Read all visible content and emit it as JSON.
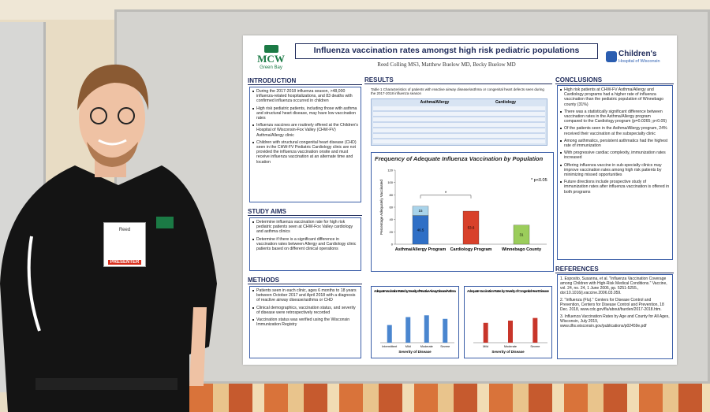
{
  "badge": {
    "name": "Reed",
    "label": "PRESENTER"
  },
  "poster": {
    "logo_left": {
      "name": "MCW",
      "sub": "Green Bay"
    },
    "title": "Influenza vaccination rates amongst high risk pediatric populations",
    "authors": "Reed Colling MS3, Matthew Buelow MD, Becky Buelow MD",
    "logo_right": {
      "name": "Children's",
      "sub": "Hospital of Wisconsin"
    },
    "introduction": {
      "heading": "INTRODUCTION",
      "items": [
        "During the 2017-2018 influenza season, >48,000 influenza-related hospitalizations, and 83 deaths with confirmed influenza occurred in children",
        "High risk pediatric patients, including those with asthma and structural heart disease, may have low vaccination rates",
        "Influenza vaccines are routinely offered at the Children's Hospital of Wisconsin-Fox Valley (CHW-FV) Asthma/Allergy clinic",
        "Children with structural congenital heart disease (CHD) seen in the CHW-FV Pediatric Cardiology clinic are not provided the influenza vaccination onsite and must receive influenza vaccination at an alternate time and location"
      ]
    },
    "study_aims": {
      "heading": "STUDY AIMS",
      "items": [
        "Determine influenza vaccination rate for high risk pediatric patients seen at CHW-Fox Valley cardiology and asthma clinics",
        "Determine if there is a significant difference in vaccination rates between Allergy and Cardiology clinic patients based on different clinical operations"
      ]
    },
    "methods": {
      "heading": "METHODS",
      "items": [
        "Patients seen in each clinic, ages 6 months to 18 years between October 2017 and April 2018 with a diagnosis of reactive airway disease/asthma or CHD",
        "Clinical demographics, vaccination status, and severity of disease were retrospectively recorded",
        "Vaccination status was verified using the Wisconsin Immunization Registry"
      ]
    },
    "results": {
      "heading": "RESULTS",
      "table": {
        "caption": "Table 1 Characteristics of patients with reactive airway disease/asthma or congenital heart defects seen during the 2017-2018 influenza season",
        "groups": [
          "Asthma/Allergy",
          "Cardiology"
        ]
      },
      "figure": {
        "title": "Frequency of Adequate Influenza Vaccination by Population",
        "y_label": "Percentage Adequately Vaccinated",
        "note": "* p<0.05",
        "significance": "*",
        "ylim": [
          0,
          120
        ],
        "yticks": [
          0,
          20,
          40,
          60,
          80,
          100,
          120
        ],
        "bars": [
          {
            "category": "Asthma/Allergy Program",
            "values": [
              46.5,
              15
            ],
            "colors": [
              "#2f6fc6",
              "#a8d3ea"
            ]
          },
          {
            "category": "Cardiology Program",
            "values": [
              53.6
            ],
            "colors": [
              "#d8412b"
            ]
          },
          {
            "category": "Winnebago County",
            "values": [
              31
            ],
            "colors": [
              "#9bcd5b"
            ]
          }
        ]
      },
      "small_charts": [
        {
          "title": "Adequate Vaccination Rates by Severity of Reactive Airway Disease/Asthma",
          "x_label": "Severity of Disease",
          "categories": [
            "Intermittent",
            "Mild",
            "Moderate",
            "Severe"
          ],
          "values": [
            40,
            58,
            62,
            54
          ],
          "color": "#4a86cf",
          "ylim": [
            0,
            100
          ]
        },
        {
          "title": "Adequate Vaccination Rates by Severity of Congenital Heart Disease",
          "x_label": "Severity of Disease",
          "categories": [
            "Mild",
            "Moderate",
            "Severe"
          ],
          "values": [
            45,
            50,
            56
          ],
          "color": "#c8352a",
          "ylim": [
            0,
            100
          ]
        }
      ]
    },
    "conclusions": {
      "heading": "CONCLUSIONS",
      "items": [
        "High risk patients at CHW-FV Asthma/Allergy and Cardiology programs had a higher rate of influenza vaccination than the pediatric population of Winnebago county (31%)",
        "There was a statistically significant difference between vaccination rates in the Asthma/Allergy program compared to the Cardiology program (p=0.0265; p<0.05)",
        "Of the patients seen in the Asthma/Allergy program, 24% received their vaccination at the subspecialty clinic",
        "Among asthmatics, persistent asthmatics had the highest rate of immunization",
        "With progressive cardiac complexity, immunization rates increased",
        "Offering influenza vaccine in sub-specialty clinics may improve vaccination rates among high risk patients by minimizing missed opportunities",
        "Future directions include prospective study of immunization rates after influenza vaccination is offered in both programs"
      ]
    },
    "references": {
      "heading": "REFERENCES",
      "items": [
        "1. Esposito, Susanna, et al. \"Influenza Vaccination Coverage among Children with High-Risk Medical Conditions.\" Vaccine, vol. 24, no. 24, 1 June 2006, pp. 5251-5255., doi:10.1016/j.vaccine.2006.03.059.",
        "2. \"Influenza (Flu).\" Centers for Disease Control and Prevention, Centers for Disease Control and Prevention, 18 Dec. 2018, www.cdc.gov/flu/about/burden/2017-2018.htm.",
        "3. Influenza Vaccination Rates by Age and County for All Ages, Wisconsin, July 2019, www.dhs.wisconsin.gov/publications/p02459e.pdf"
      ]
    }
  }
}
